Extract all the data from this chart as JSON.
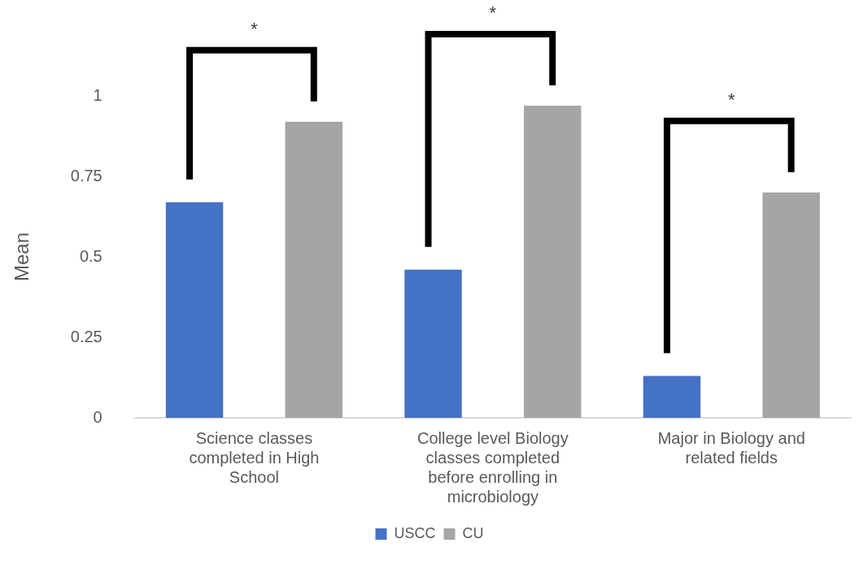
{
  "chart_data": {
    "type": "bar",
    "ylabel": "Mean",
    "categories": [
      "Science classes completed in High School",
      "College level Biology classes completed before enrolling in microbiology",
      "Major in Biology and related fields"
    ],
    "series": [
      {
        "name": "USCC",
        "color": "#4472c4",
        "values": [
          0.67,
          0.46,
          0.13
        ]
      },
      {
        "name": "CU",
        "color": "#a5a5a5",
        "values": [
          0.92,
          0.97,
          0.7
        ]
      }
    ],
    "ylim": [
      0,
      1
    ],
    "yticks": [
      0,
      0.25,
      0.5,
      0.75,
      1
    ],
    "grid": false,
    "legend": "bottom",
    "annotations": [
      "*",
      "*",
      "*"
    ]
  }
}
